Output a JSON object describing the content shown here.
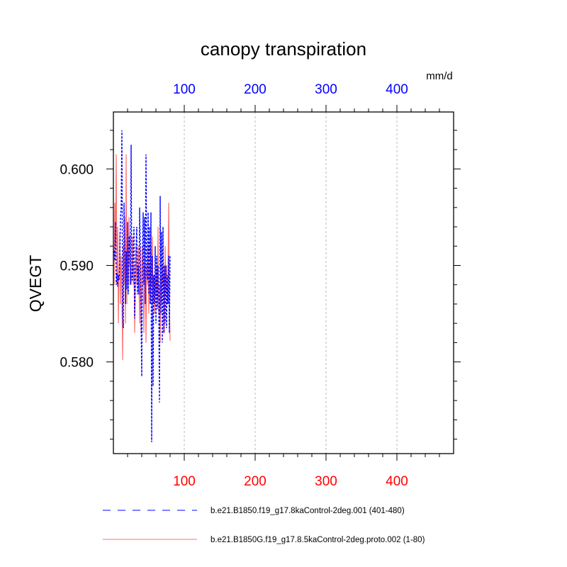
{
  "chart_data": {
    "type": "line",
    "title": "canopy transpiration",
    "units": "mm/d",
    "ylabel": "QVEGT",
    "xlim": [
      0,
      480
    ],
    "ylim": [
      0.5705,
      0.6059
    ],
    "x_ticks": [
      100,
      200,
      300,
      400
    ],
    "x_tick_labels": [
      "100",
      "200",
      "300",
      "400"
    ],
    "y_ticks": [
      0.58,
      0.59,
      0.6
    ],
    "y_tick_labels": [
      "0.580",
      "0.590",
      "0.600"
    ],
    "top_axis_color": "#0000ff",
    "bottom_axis_color": "#ff0000",
    "grid": "vertical dashed at x ticks",
    "legend_position": "bottom",
    "x": [
      1,
      2,
      3,
      4,
      5,
      6,
      7,
      8,
      9,
      10,
      11,
      12,
      13,
      14,
      15,
      16,
      17,
      18,
      19,
      20,
      21,
      22,
      23,
      24,
      25,
      26,
      27,
      28,
      29,
      30,
      31,
      32,
      33,
      34,
      35,
      36,
      37,
      38,
      39,
      40,
      41,
      42,
      43,
      44,
      45,
      46,
      47,
      48,
      49,
      50,
      51,
      52,
      53,
      54,
      55,
      56,
      57,
      58,
      59,
      60,
      61,
      62,
      63,
      64,
      65,
      66,
      67,
      68,
      69,
      70,
      71,
      72,
      73,
      74,
      75,
      76,
      77,
      78,
      79,
      80
    ],
    "series": [
      {
        "name": "b.e21.B1850.f19_g17.8kaControl-2deg.001 (401-480)",
        "color": "#0000ff",
        "style": "dashed",
        "values": [
          0.5915,
          0.5905,
          0.5945,
          0.588,
          0.5892,
          0.5878,
          0.589,
          0.5885,
          0.5905,
          0.595,
          0.596,
          0.604,
          0.585,
          0.5835,
          0.5965,
          0.592,
          0.586,
          0.5915,
          0.5875,
          0.5945,
          0.587,
          0.593,
          0.593,
          0.588,
          0.6025,
          0.5885,
          0.5885,
          0.591,
          0.594,
          0.5845,
          0.588,
          0.592,
          0.594,
          0.587,
          0.59,
          0.587,
          0.596,
          0.5915,
          0.5845,
          0.5785,
          0.5915,
          0.5955,
          0.588,
          0.595,
          0.586,
          0.6015,
          0.589,
          0.5885,
          0.5955,
          0.587,
          0.594,
          0.586,
          0.5955,
          0.5717,
          0.591,
          0.5775,
          0.589,
          0.586,
          0.592,
          0.584,
          0.591,
          0.5855,
          0.59,
          0.586,
          0.5758,
          0.5972,
          0.585,
          0.5935,
          0.582,
          0.594,
          0.583,
          0.59,
          0.584,
          0.59,
          0.5835,
          0.589,
          0.586,
          0.591,
          0.583,
          0.591
        ]
      },
      {
        "name": "b.e21.B1850G.f19_g17.8.5kaControl-2deg.proto.002 (1-80)",
        "color": "#ff7070",
        "style": "solid",
        "values": [
          0.588,
          0.5965,
          0.592,
          0.6015,
          0.588,
          0.594,
          0.584,
          0.589,
          0.5935,
          0.586,
          0.591,
          0.587,
          0.5802,
          0.592,
          0.588,
          0.595,
          0.584,
          0.6015,
          0.586,
          0.592,
          0.588,
          0.595,
          0.59,
          0.59,
          0.588,
          0.589,
          0.593,
          0.588,
          0.59,
          0.583,
          0.589,
          0.592,
          0.588,
          0.589,
          0.592,
          0.588,
          0.584,
          0.592,
          0.583,
          0.589,
          0.592,
          0.588,
          0.583,
          0.59,
          0.589,
          0.582,
          0.59,
          0.588,
          0.592,
          0.585,
          0.59,
          0.586,
          0.592,
          0.588,
          0.593,
          0.586,
          0.589,
          0.585,
          0.589,
          0.587,
          0.59,
          0.586,
          0.594,
          0.585,
          0.588,
          0.582,
          0.589,
          0.586,
          0.59,
          0.588,
          0.589,
          0.583,
          0.592,
          0.587,
          0.59,
          0.586,
          0.589,
          0.5965,
          0.586,
          0.5822
        ]
      }
    ]
  }
}
